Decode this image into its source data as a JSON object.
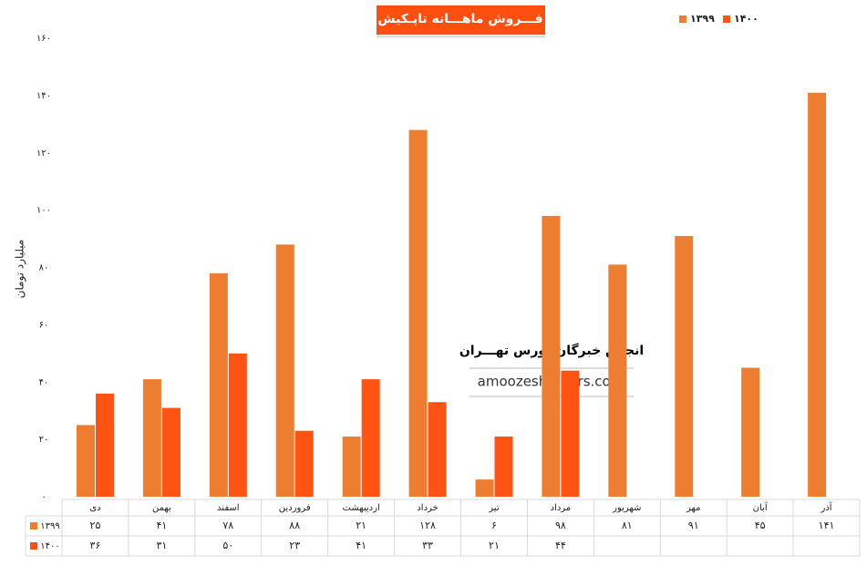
{
  "chart_data": {
    "type": "bar",
    "title": "فـــروش ماهـــانه تاپـکیش",
    "y_label": "میلیارد تومان",
    "categories": [
      "دی",
      "بهمن",
      "اسفند",
      "فروردین",
      "اردیبهشت",
      "خرداد",
      "تیر",
      "مرداد",
      "شهریور",
      "مهر",
      "آبان",
      "آذر"
    ],
    "series": [
      {
        "name": "۱۳۹۹",
        "color": "#ed7d31",
        "values": [
          25,
          41,
          78,
          88,
          21,
          128,
          6,
          98,
          81,
          91,
          45,
          141
        ],
        "value_labels": [
          "۲۵",
          "۴۱",
          "۷۸",
          "۸۸",
          "۲۱",
          "۱۲۸",
          "۶",
          "۹۸",
          "۸۱",
          "۹۱",
          "۴۵",
          "۱۴۱"
        ]
      },
      {
        "name": "۱۴۰۰",
        "color": "#ff5314",
        "values": [
          36,
          31,
          50,
          23,
          41,
          33,
          21,
          44,
          null,
          null,
          null,
          null
        ],
        "value_labels": [
          "۳۶",
          "۳۱",
          "۵۰",
          "۲۳",
          "۴۱",
          "۳۳",
          "۲۱",
          "۴۴",
          null,
          null,
          null,
          null
        ]
      }
    ],
    "ylim": [
      0,
      160
    ],
    "yticks": [
      {
        "value": 0,
        "label": "۰"
      },
      {
        "value": 20,
        "label": "۲۰"
      },
      {
        "value": 40,
        "label": "۴۰"
      },
      {
        "value": 60,
        "label": "۶۰"
      },
      {
        "value": 80,
        "label": "۸۰"
      },
      {
        "value": 100,
        "label": "۱۰۰"
      },
      {
        "value": 120,
        "label": "۱۲۰"
      },
      {
        "value": 140,
        "label": "۱۴۰"
      },
      {
        "value": 160,
        "label": "۱۶۰"
      }
    ],
    "legend": "top-right",
    "watermark": [
      "انجمن خبرگان بورس تهـــران",
      "amoozesh-boors.com"
    ]
  }
}
